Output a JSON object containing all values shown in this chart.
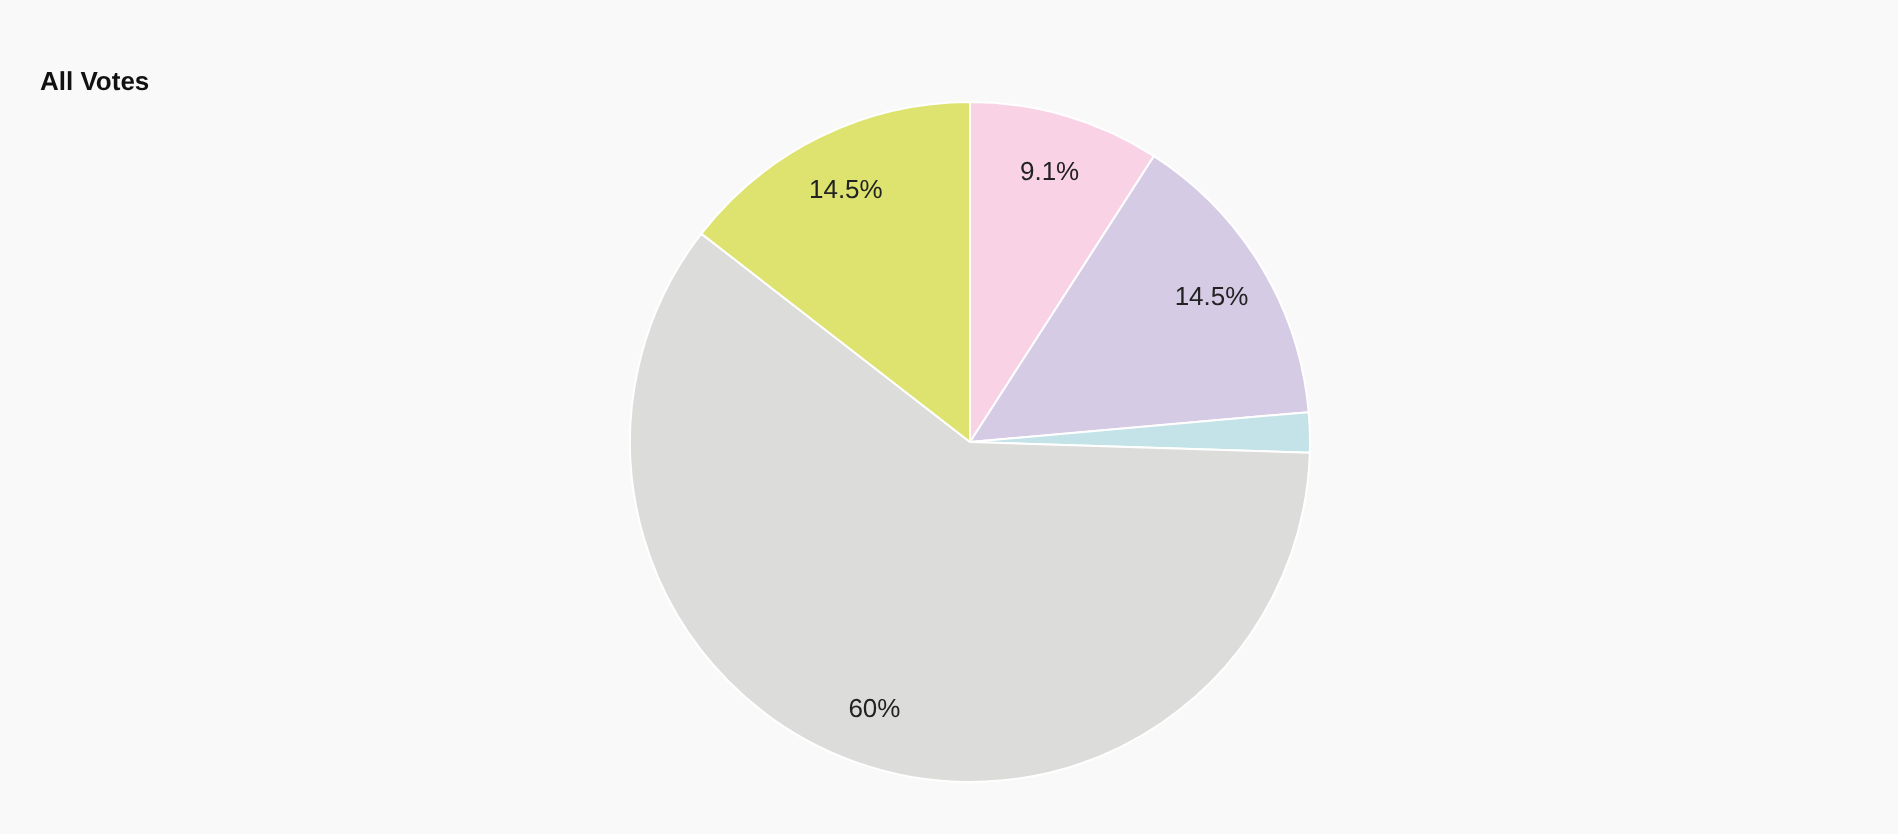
{
  "chart_data": {
    "type": "pie",
    "title": "All Votes",
    "categories": [
      null,
      null,
      null,
      null,
      null
    ],
    "values": [
      9.1,
      14.5,
      1.9,
      60,
      14.5
    ],
    "colors": [
      "#f9d3e5",
      "#d6cbe5",
      "#c3e3e9",
      "#dcdcda",
      "#dde36e"
    ],
    "value_labels": [
      "9.1%",
      "14.5%",
      null,
      "60%",
      "14.5%"
    ]
  }
}
